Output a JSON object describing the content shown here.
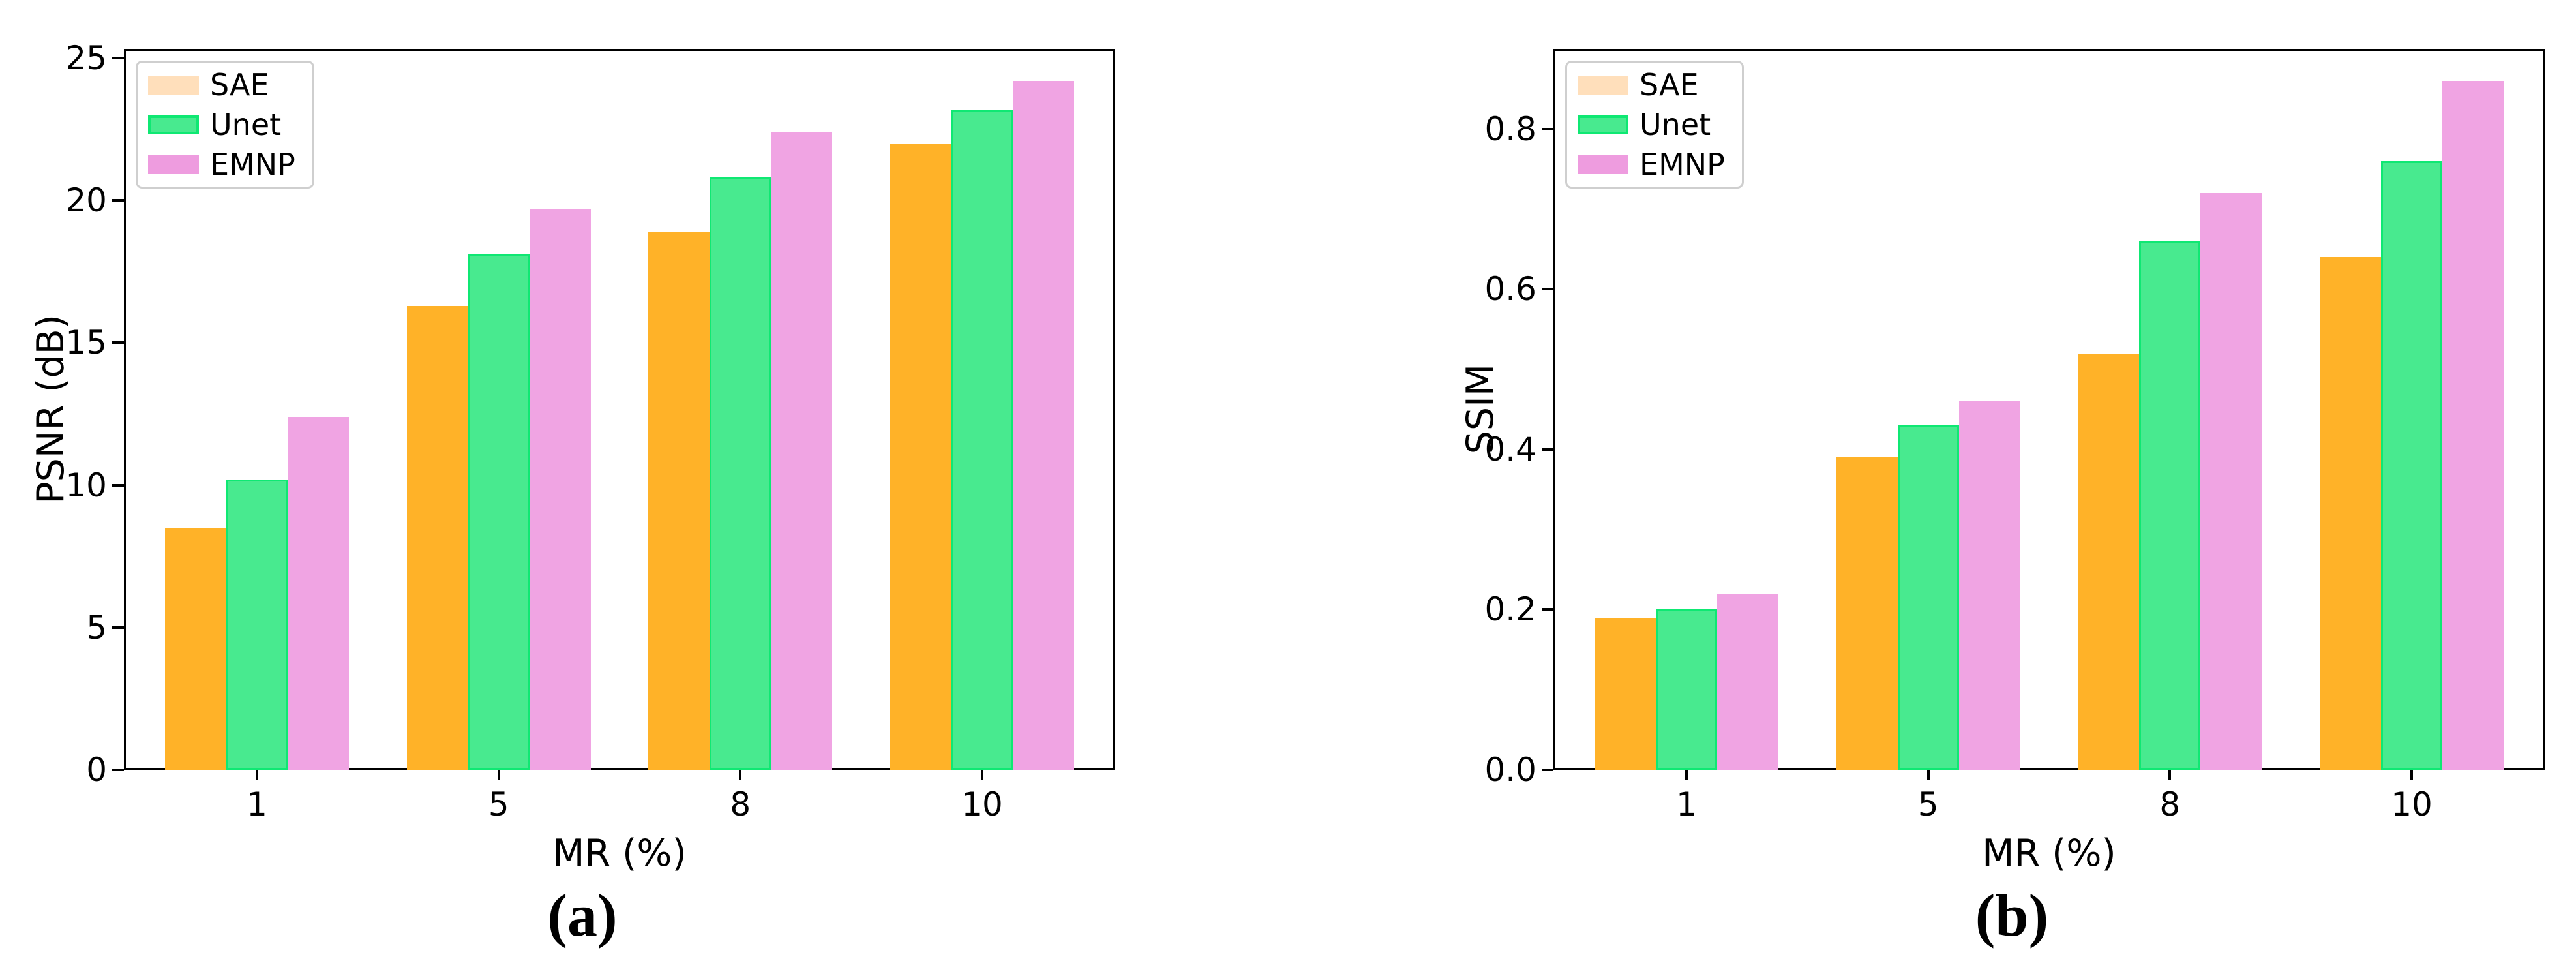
{
  "figure": {
    "captions": [
      "(a)",
      "(b)"
    ],
    "background_color": "#ffffff",
    "spine_color": "#000000",
    "legend_border_color": "#cfcfcf"
  },
  "chart_data": [
    {
      "type": "bar",
      "panel": "a",
      "xlabel": "MR (%)",
      "ylabel": "PSNR (dB)",
      "categories": [
        "1",
        "5",
        "8",
        "10"
      ],
      "series": [
        {
          "name": "SAE",
          "values": [
            8.5,
            16.3,
            18.9,
            22.0
          ],
          "color": "#FFB228",
          "legend_color": "#FFDFBB"
        },
        {
          "name": "Unet",
          "values": [
            10.2,
            18.1,
            20.8,
            23.2
          ],
          "color": "#48EA8F",
          "edge_color": "#0FE873",
          "legend_color": "#48EA8F"
        },
        {
          "name": "EMNP",
          "values": [
            12.4,
            19.7,
            22.4,
            24.2
          ],
          "color": "#F0A4E3",
          "legend_color": "#EE9CDF"
        }
      ],
      "yticks": [
        {
          "value": 0,
          "label": "0"
        },
        {
          "value": 5,
          "label": "5"
        },
        {
          "value": 10,
          "label": "10"
        },
        {
          "value": 15,
          "label": "15"
        },
        {
          "value": 20,
          "label": "20"
        },
        {
          "value": 25,
          "label": "25"
        }
      ],
      "ylim": [
        0,
        25.32
      ],
      "grid": false,
      "legend_position": "upper left"
    },
    {
      "type": "bar",
      "panel": "b",
      "xlabel": "MR (%)",
      "ylabel": "SSIM",
      "categories": [
        "1",
        "5",
        "8",
        "10"
      ],
      "series": [
        {
          "name": "SAE",
          "values": [
            0.19,
            0.39,
            0.52,
            0.64
          ],
          "color": "#FFB228",
          "legend_color": "#FFDFBB"
        },
        {
          "name": "Unet",
          "values": [
            0.2,
            0.43,
            0.66,
            0.76
          ],
          "color": "#48EA8F",
          "edge_color": "#0FE873",
          "legend_color": "#48EA8F"
        },
        {
          "name": "EMNP",
          "values": [
            0.22,
            0.46,
            0.72,
            0.86
          ],
          "color": "#F0A4E3",
          "legend_color": "#EE9CDF"
        }
      ],
      "yticks": [
        {
          "value": 0.0,
          "label": "0.0"
        },
        {
          "value": 0.2,
          "label": "0.2"
        },
        {
          "value": 0.4,
          "label": "0.4"
        },
        {
          "value": 0.6,
          "label": "0.6"
        },
        {
          "value": 0.8,
          "label": "0.8"
        }
      ],
      "ylim": [
        0,
        0.9
      ],
      "grid": false,
      "legend_position": "upper left"
    }
  ]
}
